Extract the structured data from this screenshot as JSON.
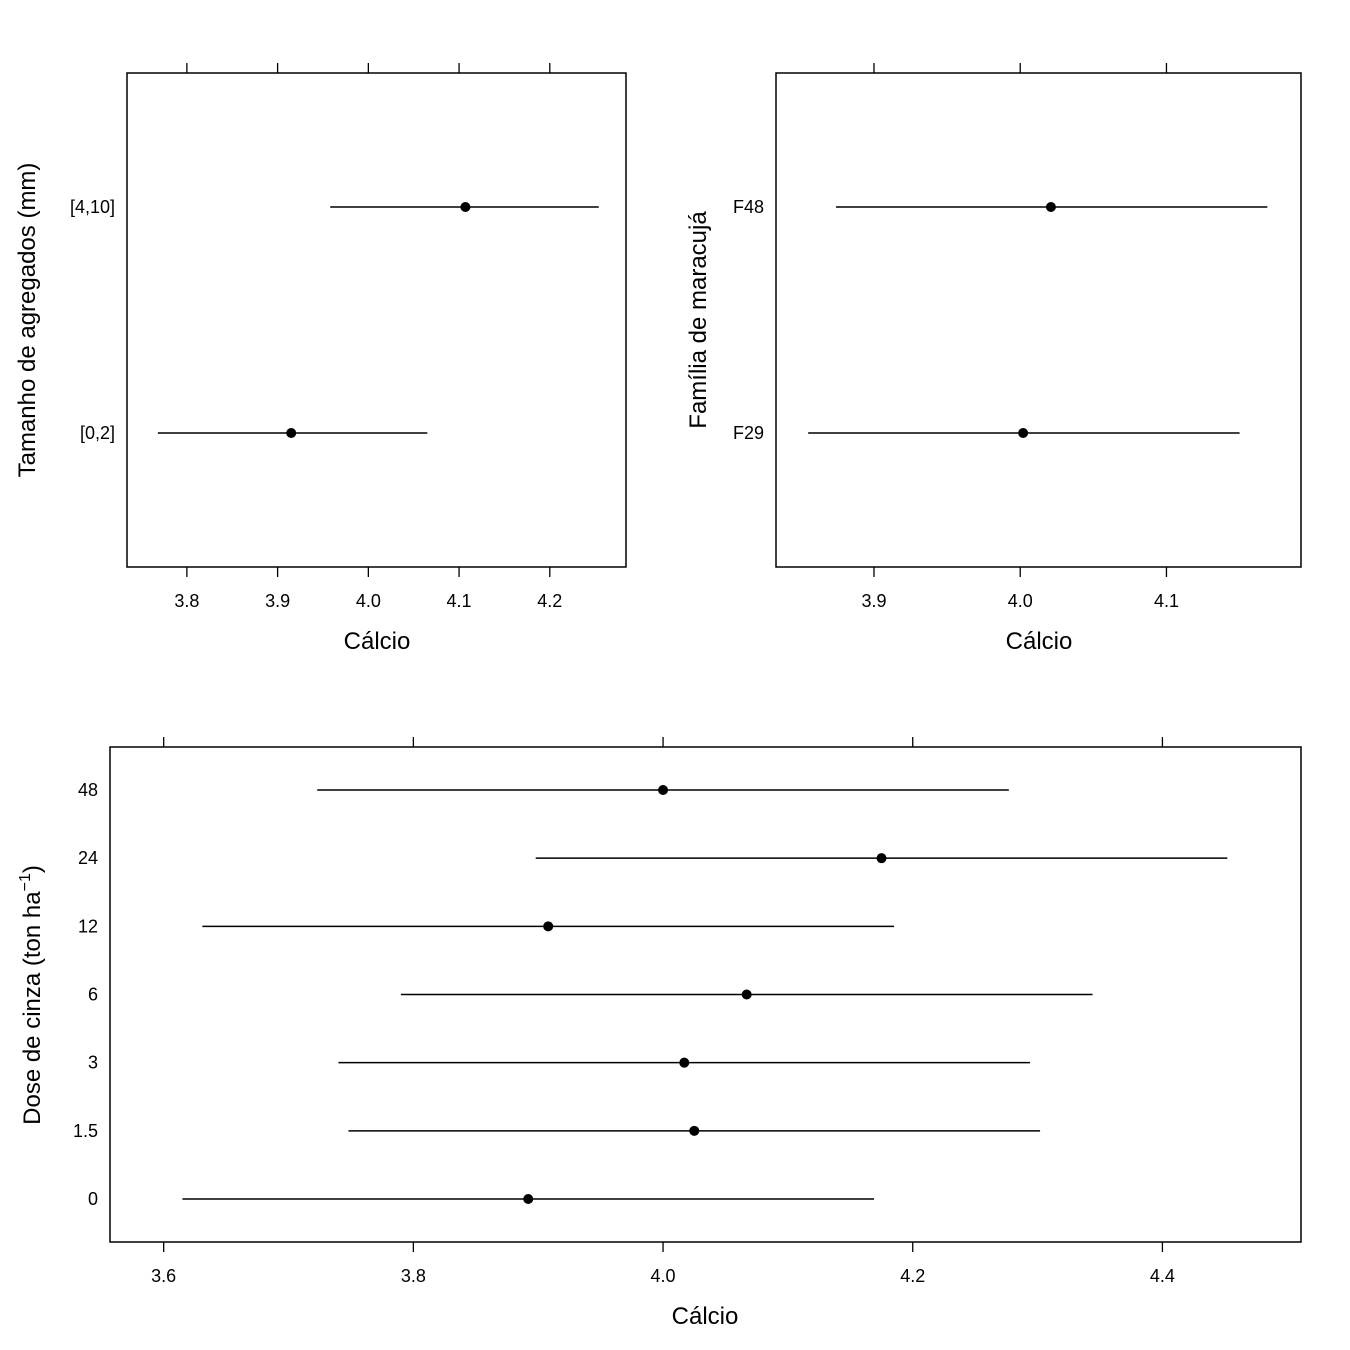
{
  "chart_data": [
    {
      "type": "dotplot-interval",
      "xlabel": "Cálcio",
      "ylabel": "Tamanho de agregados (mm)",
      "xlim": [
        3.734,
        4.284
      ],
      "xticks": [
        "3.8",
        "3.9",
        "4.0",
        "4.1",
        "4.2"
      ],
      "categories": [
        "[0,2]",
        "[4,10]"
      ],
      "estimate": [
        3.915,
        4.107
      ],
      "lower": [
        3.768,
        3.958
      ],
      "upper": [
        4.065,
        4.254
      ]
    },
    {
      "type": "dotplot-interval",
      "xlabel": "Cálcio",
      "ylabel": "Família de maracujá",
      "xlim": [
        3.833,
        4.192
      ],
      "xticks": [
        "3.9",
        "4.0",
        "4.1"
      ],
      "categories": [
        "F29",
        "F48"
      ],
      "estimate": [
        4.002,
        4.021
      ],
      "lower": [
        3.855,
        3.874
      ],
      "upper": [
        4.15,
        4.169
      ]
    },
    {
      "type": "dotplot-interval",
      "xlabel": "Cálcio",
      "ylabel": "Dose de cinza (ton ha",
      "ylabel_sup": "−1",
      "ylabel_close": ")",
      "xlim": [
        3.557,
        4.511
      ],
      "xticks": [
        "3.6",
        "3.8",
        "4.0",
        "4.2",
        "4.4"
      ],
      "categories": [
        "0",
        "1.5",
        "3",
        "6",
        "12",
        "24",
        "48"
      ],
      "estimate": [
        3.892,
        4.025,
        4.017,
        4.067,
        3.908,
        4.175,
        4.0
      ],
      "lower": [
        3.615,
        3.748,
        3.74,
        3.79,
        3.631,
        3.898,
        3.723
      ],
      "upper": [
        4.169,
        4.302,
        4.294,
        4.344,
        4.185,
        4.452,
        4.277
      ]
    }
  ]
}
